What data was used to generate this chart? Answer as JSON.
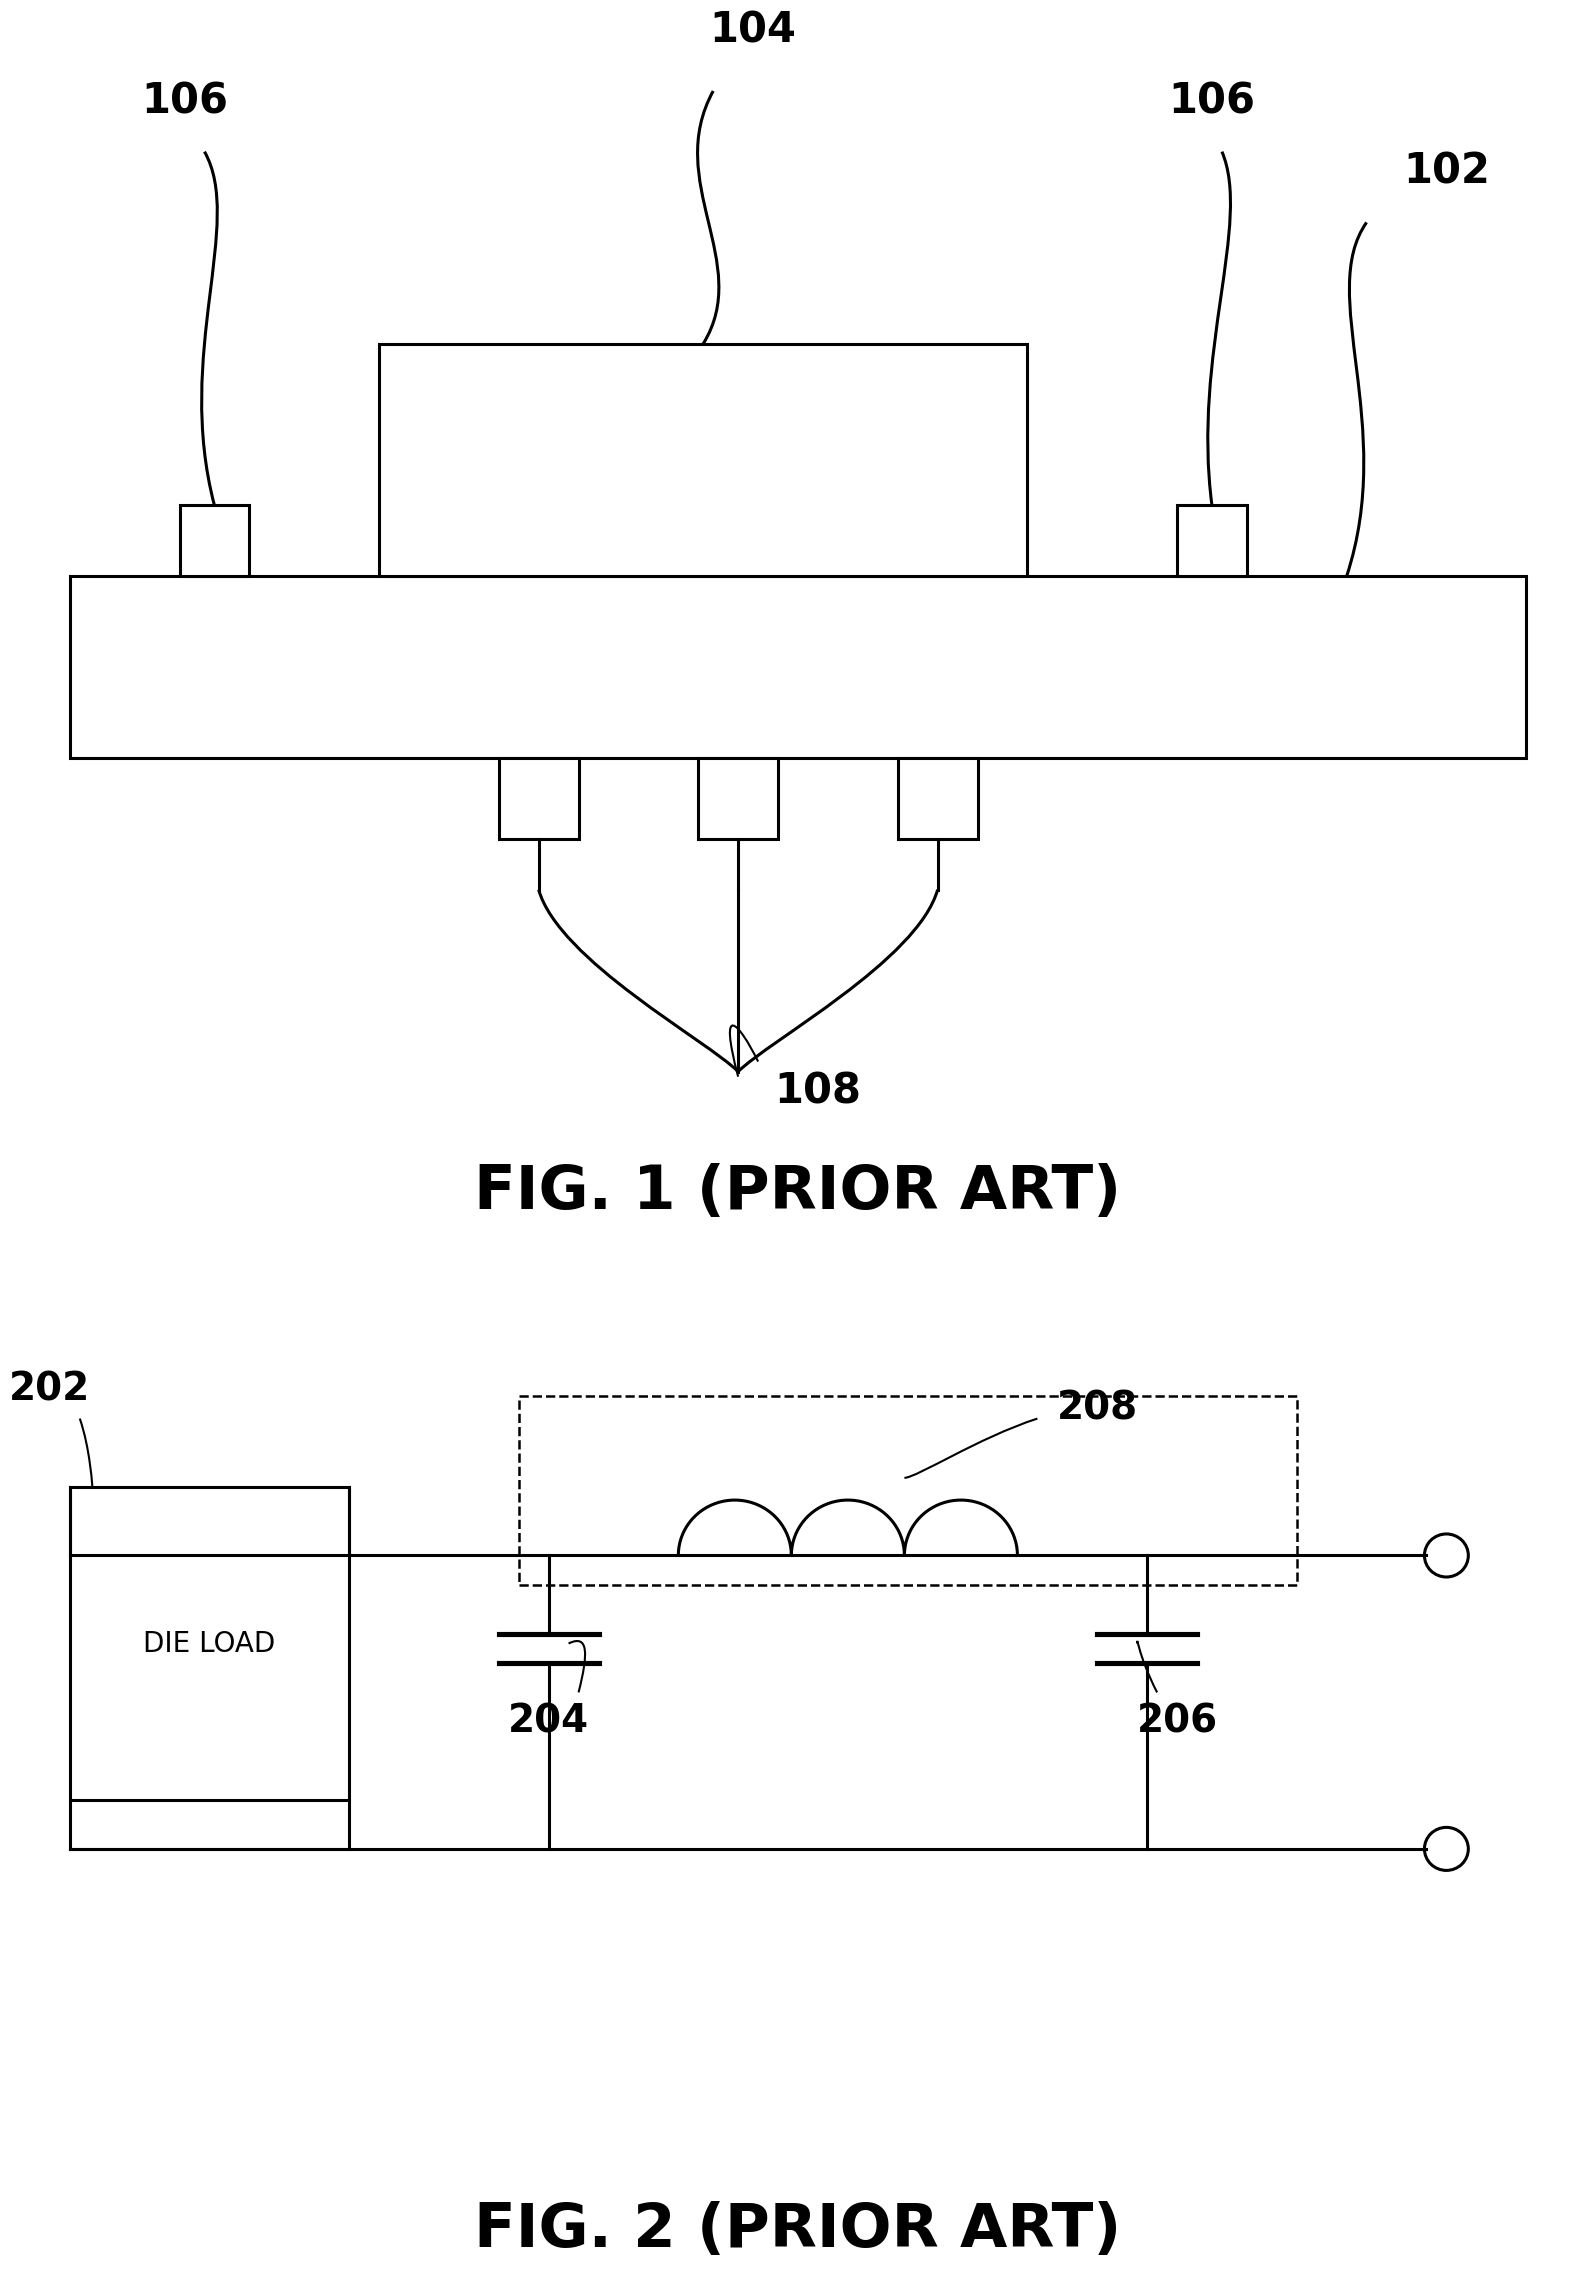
{
  "fig1_caption": "FIG. 1 (PRIOR ART)",
  "fig2_caption": "FIG. 2 (PRIOR ART)",
  "bg_color": "#ffffff",
  "line_color": "#000000"
}
